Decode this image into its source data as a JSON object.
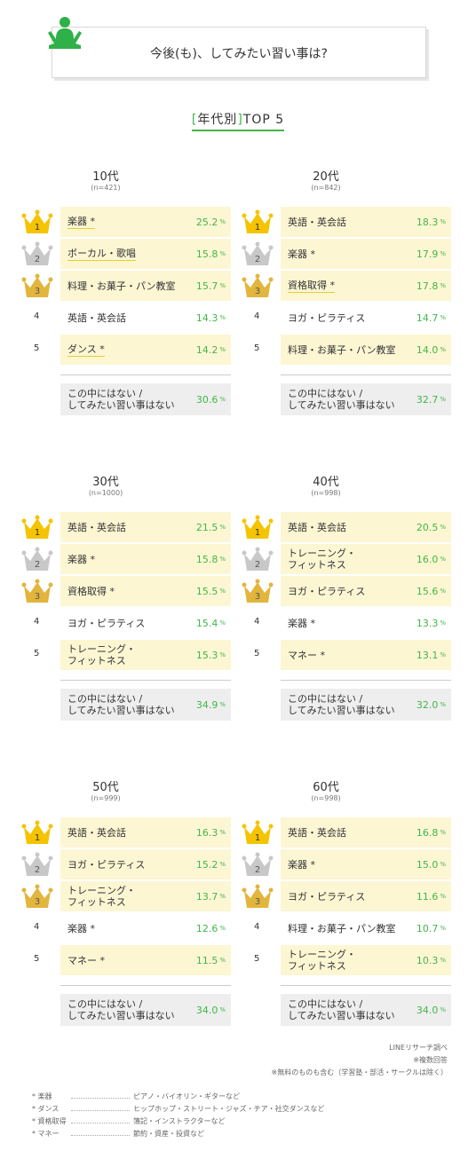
{
  "title": "今後(も)、してみたい習い事は?",
  "subtitle": {
    "open": "[",
    "main": "年代別",
    "close": "]",
    "rest": "TOP 5"
  },
  "groups": [
    {
      "age": "10代",
      "n": "(n=421)",
      "rows": [
        {
          "rank": "1",
          "label": "楽器 *",
          "value": "25.2",
          "underline": true
        },
        {
          "rank": "2",
          "label": "ボーカル・歌唱",
          "value": "15.8",
          "underline": true
        },
        {
          "rank": "3",
          "label": "料理・お菓子・パン教室",
          "value": "15.7",
          "underline": false
        },
        {
          "rank": "4",
          "label": "英語・英会話",
          "value": "14.3",
          "underline": false
        },
        {
          "rank": "5",
          "label": "ダンス *",
          "value": "14.2",
          "underline": true
        }
      ],
      "other": {
        "label1": "この中にはない /",
        "label2": "してみたい習い事はない",
        "value": "30.6"
      }
    },
    {
      "age": "20代",
      "n": "(n=842)",
      "rows": [
        {
          "rank": "1",
          "label": "英語・英会話",
          "value": "18.3",
          "underline": false
        },
        {
          "rank": "2",
          "label": "楽器 *",
          "value": "17.9",
          "underline": false
        },
        {
          "rank": "3",
          "label": "資格取得 *",
          "value": "17.8",
          "underline": true
        },
        {
          "rank": "4",
          "label": "ヨガ・ピラティス",
          "value": "14.7",
          "underline": false
        },
        {
          "rank": "5",
          "label": "料理・お菓子・パン教室",
          "value": "14.0",
          "underline": false
        }
      ],
      "other": {
        "label1": "この中にはない /",
        "label2": "してみたい習い事はない",
        "value": "32.7"
      }
    },
    {
      "age": "30代",
      "n": "(n=1000)",
      "rows": [
        {
          "rank": "1",
          "label": "英語・英会話",
          "value": "21.5",
          "underline": false
        },
        {
          "rank": "2",
          "label": "楽器 *",
          "value": "15.8",
          "underline": false
        },
        {
          "rank": "3",
          "label": "資格取得 *",
          "value": "15.5",
          "underline": false
        },
        {
          "rank": "4",
          "label": "ヨガ・ピラティス",
          "value": "15.4",
          "underline": false
        },
        {
          "rank": "5",
          "label": "トレーニング・\nフィットネス",
          "value": "15.3",
          "underline": false
        }
      ],
      "other": {
        "label1": "この中にはない /",
        "label2": "してみたい習い事はない",
        "value": "34.9"
      }
    },
    {
      "age": "40代",
      "n": "(n=998)",
      "rows": [
        {
          "rank": "1",
          "label": "英語・英会話",
          "value": "20.5",
          "underline": false
        },
        {
          "rank": "2",
          "label": "トレーニング・\nフィットネス",
          "value": "16.0",
          "underline": false
        },
        {
          "rank": "3",
          "label": "ヨガ・ピラティス",
          "value": "15.6",
          "underline": false
        },
        {
          "rank": "4",
          "label": "楽器 *",
          "value": "13.3",
          "underline": false
        },
        {
          "rank": "5",
          "label": "マネー *",
          "value": "13.1",
          "underline": false
        }
      ],
      "other": {
        "label1": "この中にはない /",
        "label2": "してみたい習い事はない",
        "value": "32.0"
      }
    },
    {
      "age": "50代",
      "n": "(n=999)",
      "rows": [
        {
          "rank": "1",
          "label": "英語・英会話",
          "value": "16.3",
          "underline": false
        },
        {
          "rank": "2",
          "label": "ヨガ・ピラティス",
          "value": "15.2",
          "underline": false
        },
        {
          "rank": "3",
          "label": "トレーニング・\nフィットネス",
          "value": "13.7",
          "underline": false
        },
        {
          "rank": "4",
          "label": "楽器 *",
          "value": "12.6",
          "underline": false
        },
        {
          "rank": "5",
          "label": "マネー *",
          "value": "11.5",
          "underline": false
        }
      ],
      "other": {
        "label1": "この中にはない /",
        "label2": "してみたい習い事はない",
        "value": "34.0"
      }
    },
    {
      "age": "60代",
      "n": "(n=998)",
      "rows": [
        {
          "rank": "1",
          "label": "英語・英会話",
          "value": "16.8",
          "underline": false
        },
        {
          "rank": "2",
          "label": "楽器 *",
          "value": "15.0",
          "underline": false
        },
        {
          "rank": "3",
          "label": "ヨガ・ピラティス",
          "value": "11.6",
          "underline": false
        },
        {
          "rank": "4",
          "label": "料理・お菓子・パン教室",
          "value": "10.7",
          "underline": false
        },
        {
          "rank": "5",
          "label": "トレーニング・\nフィットネス",
          "value": "10.3",
          "underline": false
        }
      ],
      "other": {
        "label1": "この中にはない /",
        "label2": "してみたい習い事はない",
        "value": "34.0"
      }
    }
  ],
  "unit": "%",
  "source": [
    "LINEリサーチ調べ",
    "※複数回答",
    "※無料のものも含む（学習塾・部活・サークルは除く）"
  ],
  "notes": [
    {
      "key": "* 楽器",
      "value": "ピアノ・バイオリン・ギターなど"
    },
    {
      "key": "* ダンス",
      "value": "ヒップホップ・ストリート・ジャズ・チア・社交ダンスなど"
    },
    {
      "key": "* 資格取得",
      "value": "簿記・インストラクターなど"
    },
    {
      "key": "* マネー",
      "value": "節約・資産・投資など"
    }
  ],
  "colors": {
    "accent": "#42b649",
    "highlight": "#fdf6d3",
    "gold": "#f5c400",
    "silver": "#c8c8c8",
    "bronze": "#e2b53c",
    "other_bg": "#eeeeee"
  },
  "icons": [
    "meditation-figure-icon",
    "crown-icon"
  ]
}
